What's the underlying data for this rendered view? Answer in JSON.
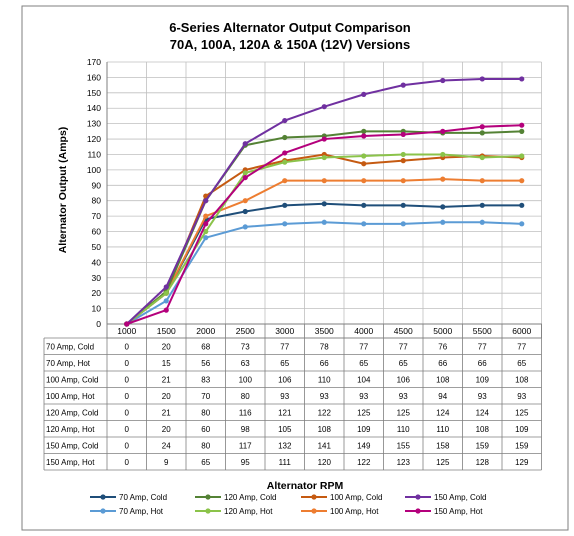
{
  "chart_data": {
    "type": "line",
    "title_line1": "6-Series Alternator Output Comparison",
    "title_line2": "70A, 100A, 120A & 150A (12V) Versions",
    "xlabel": "Alternator RPM",
    "ylabel": "Alternator Output  (Amps)",
    "ylim": [
      0,
      170
    ],
    "y_ticks": [
      0,
      10,
      20,
      30,
      40,
      50,
      60,
      70,
      80,
      90,
      100,
      110,
      120,
      130,
      140,
      150,
      160,
      170
    ],
    "categories": [
      "1000",
      "1500",
      "2000",
      "2500",
      "3000",
      "3500",
      "4000",
      "4500",
      "5000",
      "5500",
      "6000"
    ],
    "grid": true,
    "legend_placement": "bottom",
    "series": [
      {
        "name": "70 Amp, Cold",
        "color": "#1F4E79",
        "values": [
          0,
          20,
          68,
          73,
          77,
          78,
          77,
          77,
          76,
          77,
          77
        ]
      },
      {
        "name": "70 Amp, Hot",
        "color": "#5B9BD5",
        "values": [
          0,
          15,
          56,
          63,
          65,
          66,
          65,
          65,
          66,
          66,
          65
        ]
      },
      {
        "name": "100 Amp, Cold",
        "color": "#C55A11",
        "values": [
          0,
          21,
          83,
          100,
          106,
          110,
          104,
          106,
          108,
          109,
          108
        ]
      },
      {
        "name": "100 Amp, Hot",
        "color": "#ED7D31",
        "values": [
          0,
          20,
          70,
          80,
          93,
          93,
          93,
          93,
          94,
          93,
          93
        ]
      },
      {
        "name": "120 Amp, Cold",
        "color": "#548235",
        "values": [
          0,
          21,
          80,
          116,
          121,
          122,
          125,
          125,
          124,
          124,
          125
        ]
      },
      {
        "name": "120 Amp, Hot",
        "color": "#8BC34A",
        "values": [
          0,
          20,
          60,
          98,
          105,
          108,
          109,
          110,
          110,
          108,
          109
        ]
      },
      {
        "name": "150 Amp, Cold",
        "color": "#7030A0",
        "values": [
          0,
          24,
          80,
          117,
          132,
          141,
          149,
          155,
          158,
          159,
          159
        ]
      },
      {
        "name": "150 Amp, Hot",
        "color": "#B4007C",
        "values": [
          0,
          9,
          65,
          95,
          111,
          120,
          122,
          123,
          125,
          128,
          129
        ]
      }
    ],
    "legend_order": [
      0,
      4,
      2,
      6,
      1,
      5,
      3,
      7
    ]
  }
}
